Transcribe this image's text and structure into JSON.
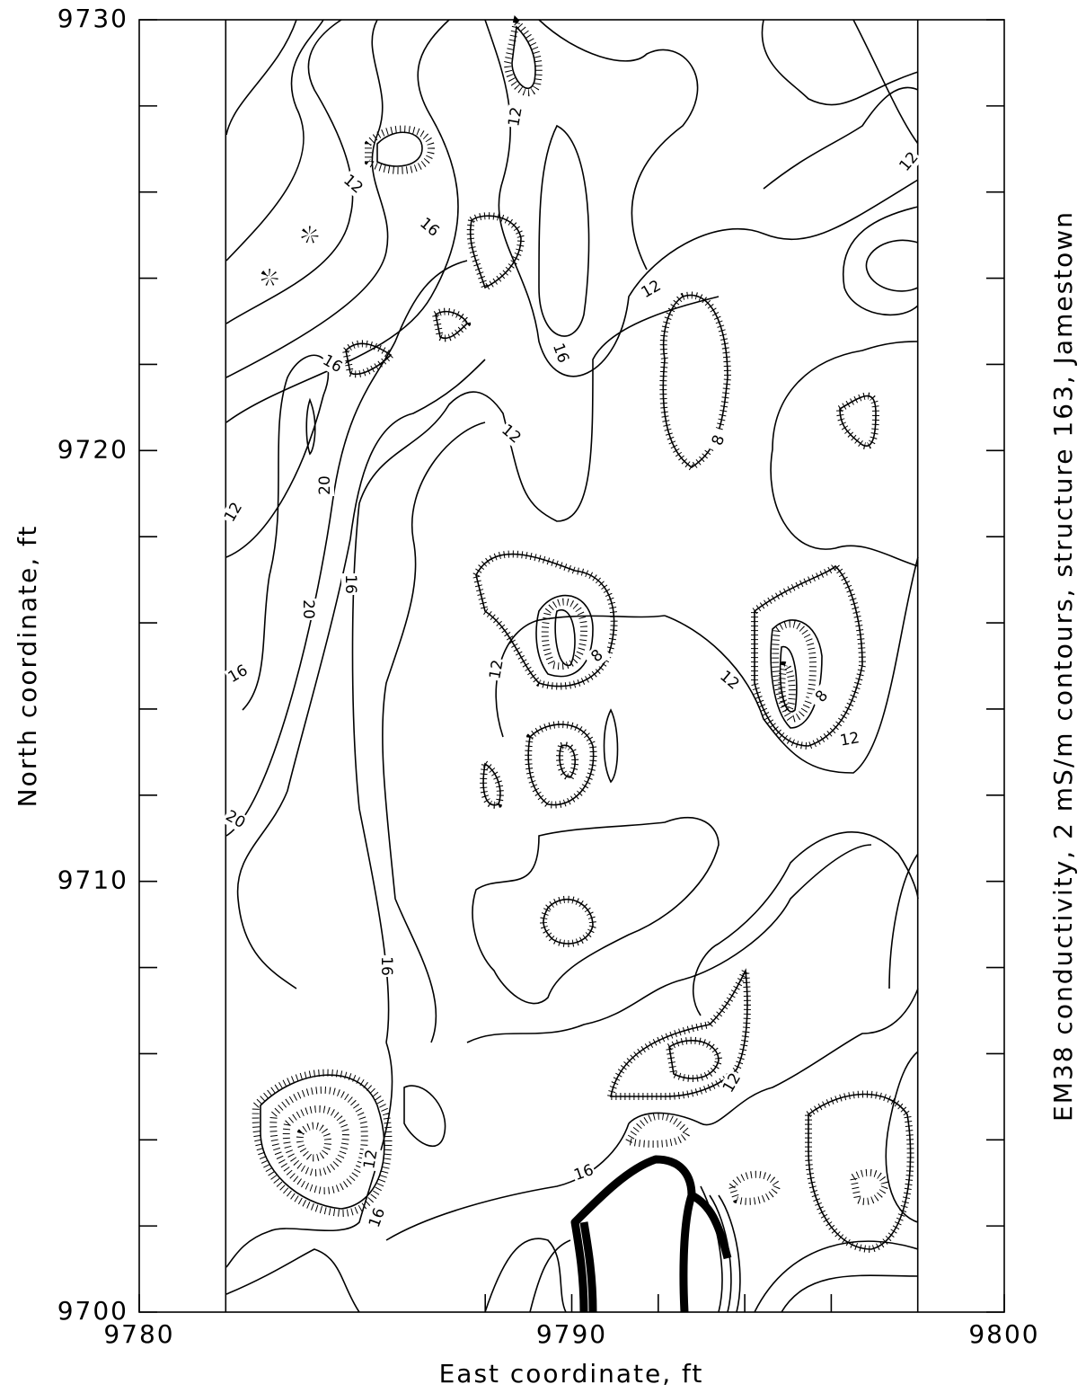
{
  "chart_data": {
    "type": "contour",
    "title": "EM38 conductivity, 2 mS/m contours, structure 163, Jamestown",
    "x_label": "East coordinate, ft",
    "y_label": "North coordinate, ft",
    "xlim": [
      9780,
      9800
    ],
    "xticks": [
      9780,
      9790,
      9800
    ],
    "x_minor_ticks": [
      9788,
      9792,
      9794,
      9796
    ],
    "ylim": [
      9700,
      9730
    ],
    "yticks": [
      9700,
      9710,
      9720,
      9730
    ],
    "y_minor_ticks": [
      9702,
      9704,
      9706,
      9708,
      9712,
      9714,
      9716,
      9718,
      9722,
      9724,
      9726,
      9728
    ],
    "survey_extent_x": [
      9782,
      9798
    ],
    "contour_interval": 2,
    "contour_labels": [
      12,
      12,
      12,
      12,
      12,
      12,
      12,
      12,
      12,
      12,
      12,
      16,
      16,
      16,
      16,
      16,
      16,
      16,
      16,
      20,
      20,
      20,
      8,
      8,
      8
    ],
    "color": "#000000"
  }
}
